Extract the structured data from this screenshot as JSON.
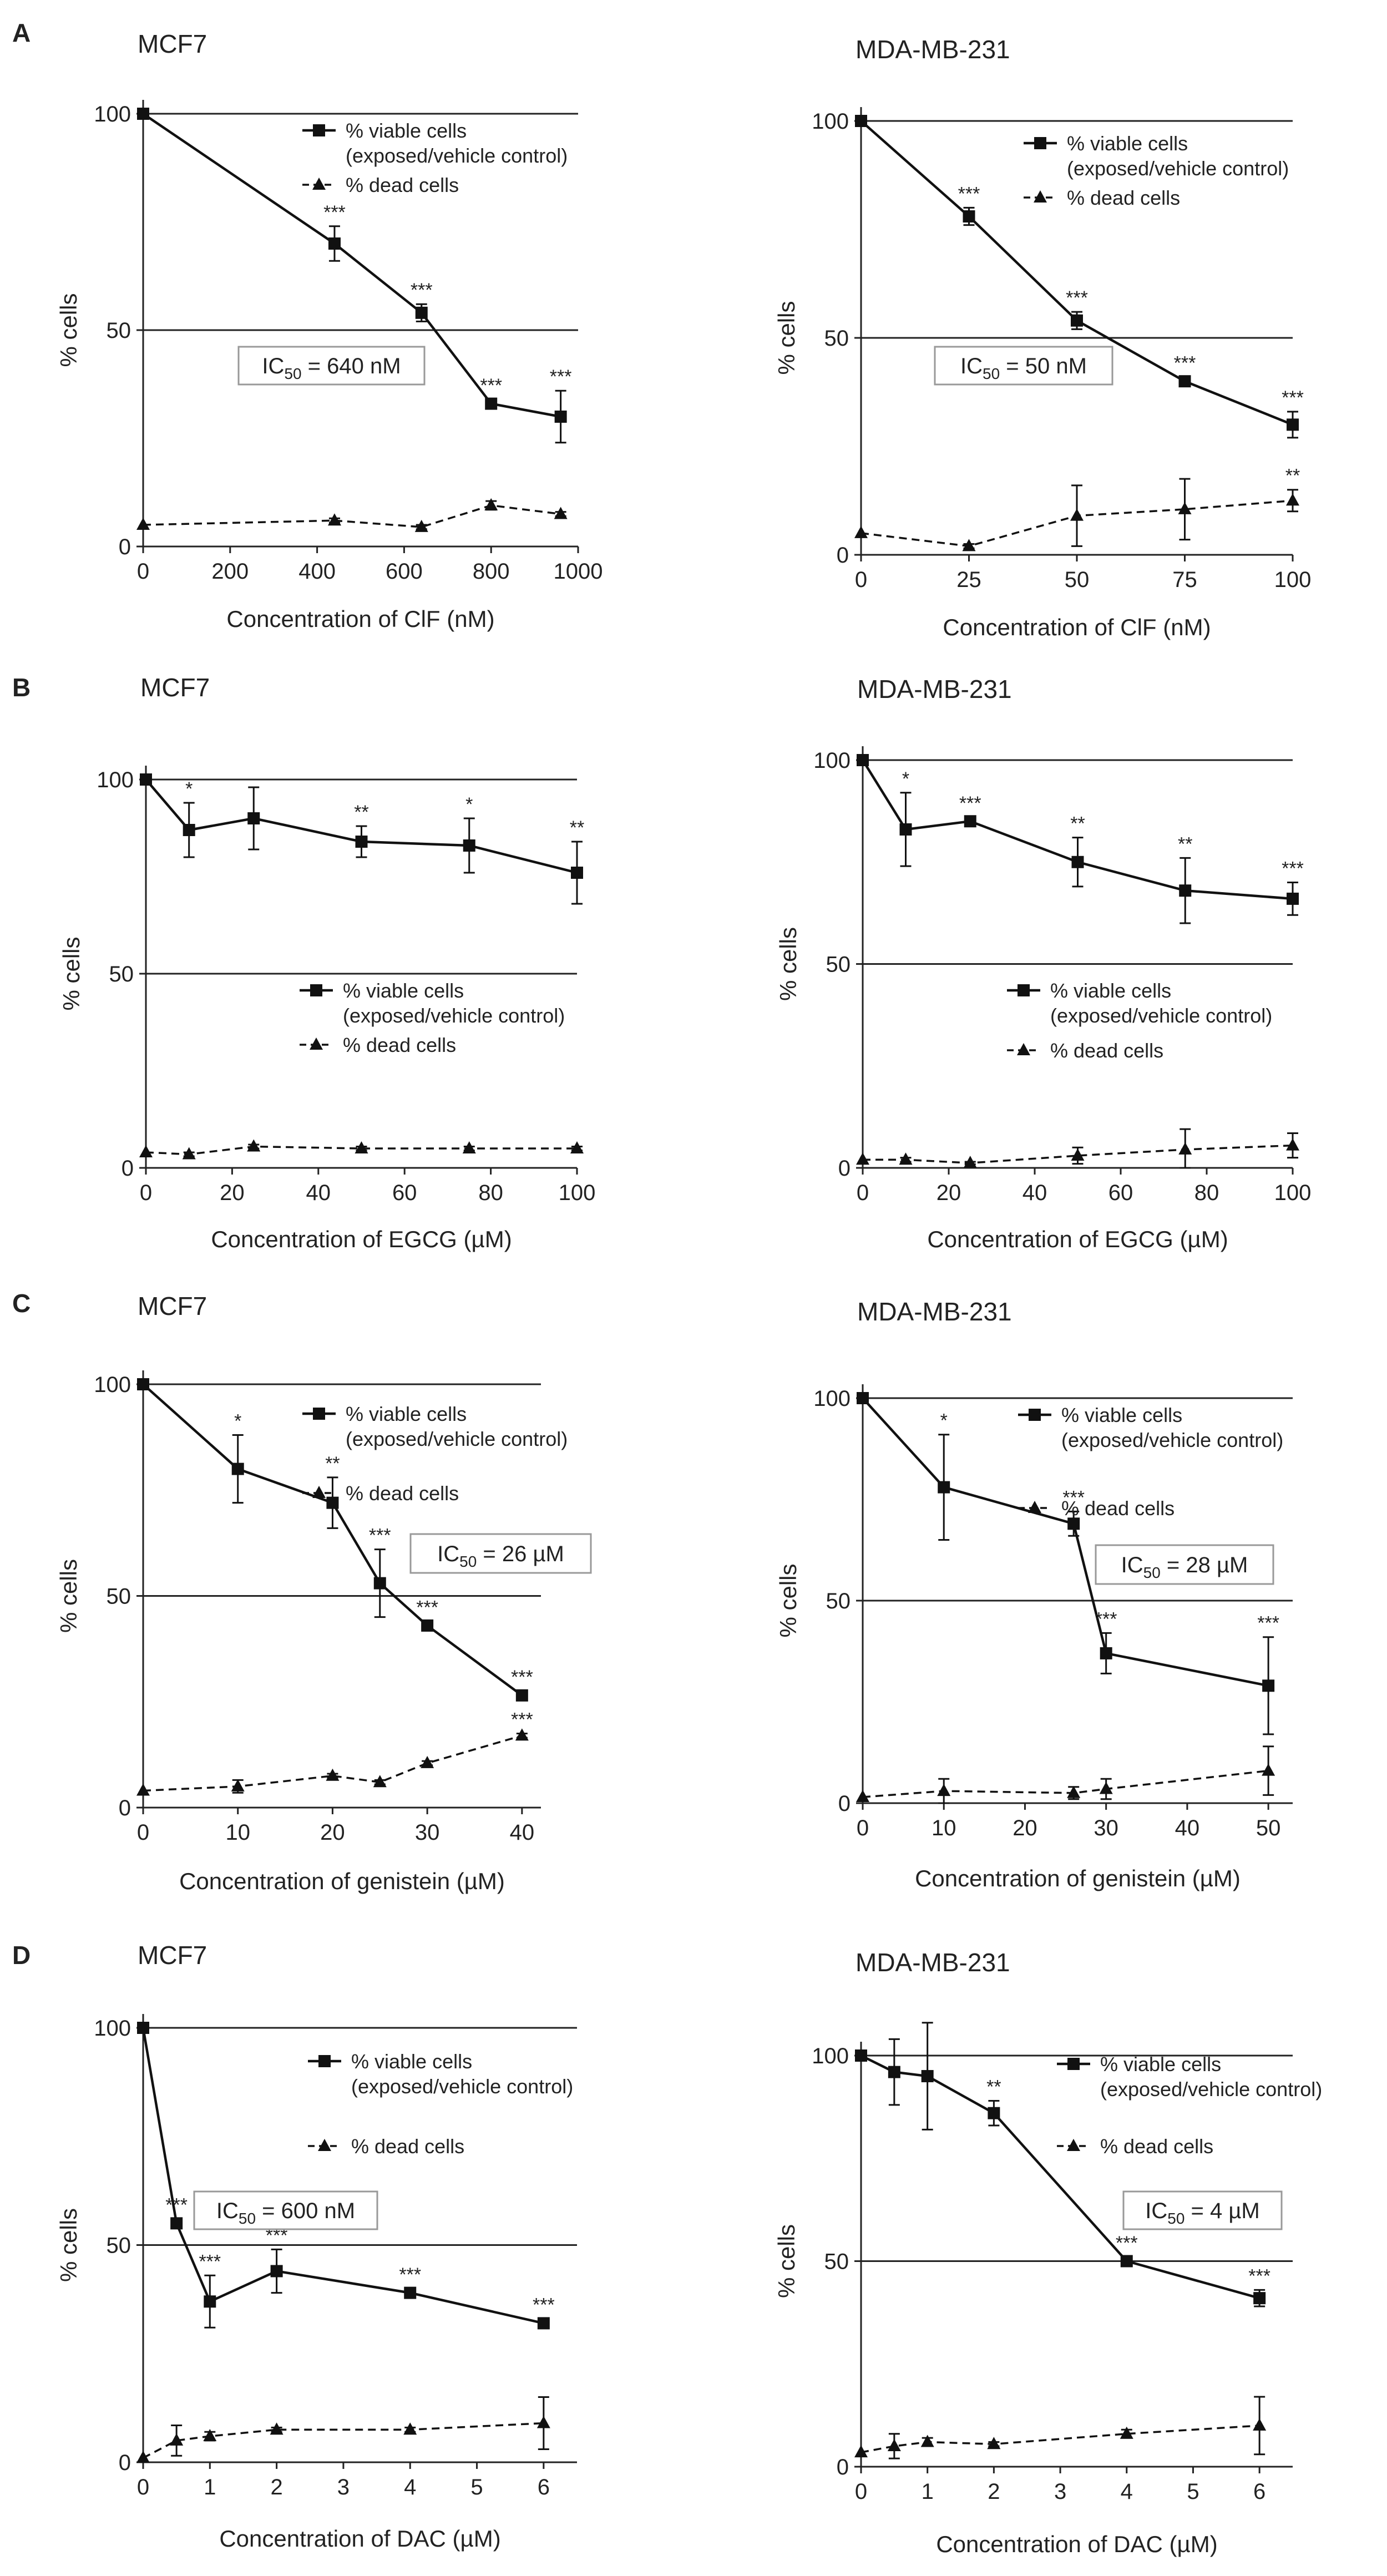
{
  "figure": {
    "panel_letters": [
      "A",
      "B",
      "C",
      "D"
    ]
  },
  "legend_labels": {
    "viable_line1": "% viable cells",
    "viable_line2": "(exposed/vehicle control)",
    "dead": "% dead cells"
  },
  "colors": {
    "ink": "#111111",
    "reference_line": "#222222",
    "box_border": "#999999"
  },
  "chart_data": [
    {
      "id": "A-MCF7",
      "type": "line",
      "panel": "A",
      "title": "MCF7",
      "xlabel": "Concentration of ClF (nM)",
      "ylabel": "% cells",
      "xlim": [
        0,
        1000
      ],
      "ylim": [
        0,
        100
      ],
      "xticks": [
        0,
        200,
        400,
        600,
        800,
        1000
      ],
      "yticks": [
        0,
        50,
        100
      ],
      "ic50": {
        "prefix": "IC",
        "sub": "50",
        "suffix": " = 640 nM"
      },
      "series": [
        {
          "name": "% viable cells (exposed/vehicle control)",
          "style": "solid",
          "marker": "square",
          "x": [
            0,
            440,
            640,
            800,
            960
          ],
          "y": [
            100,
            70,
            54,
            33,
            30
          ],
          "err": [
            0,
            4,
            2,
            1,
            6
          ],
          "sig": [
            "",
            "***",
            "***",
            "***",
            "***"
          ]
        },
        {
          "name": "% dead cells",
          "style": "dashed",
          "marker": "triangle",
          "x": [
            0,
            440,
            640,
            800,
            960
          ],
          "y": [
            5,
            6,
            4.5,
            9.5,
            7.5
          ],
          "err": [
            0,
            0.5,
            0.5,
            1,
            0.5
          ],
          "sig": [
            "",
            "",
            "",
            "",
            ""
          ]
        }
      ]
    },
    {
      "id": "A-MDA",
      "type": "line",
      "panel": "A",
      "title": "MDA-MB-231",
      "xlabel": "Concentration of ClF (nM)",
      "ylabel": "% cells",
      "xlim": [
        0,
        100
      ],
      "ylim": [
        0,
        100
      ],
      "xticks": [
        0,
        25,
        50,
        75,
        100
      ],
      "yticks": [
        0,
        50,
        100
      ],
      "ic50": {
        "prefix": "IC",
        "sub": "50",
        "suffix": " = 50 nM"
      },
      "series": [
        {
          "name": "% viable cells (exposed/vehicle control)",
          "style": "solid",
          "marker": "square",
          "x": [
            0,
            25,
            50,
            75,
            100
          ],
          "y": [
            100,
            78,
            54,
            40,
            30
          ],
          "err": [
            0,
            2,
            2,
            1,
            3
          ],
          "sig": [
            "",
            "***",
            "***",
            "***",
            "***"
          ]
        },
        {
          "name": "% dead cells",
          "style": "dashed",
          "marker": "triangle",
          "x": [
            0,
            25,
            50,
            75,
            100
          ],
          "y": [
            5,
            2,
            9,
            10.5,
            12.5
          ],
          "err": [
            0,
            0.5,
            7,
            7,
            2.5
          ],
          "sig": [
            "",
            "",
            "",
            "",
            "**"
          ]
        }
      ]
    },
    {
      "id": "B-MCF7",
      "type": "line",
      "panel": "B",
      "title": "MCF7",
      "xlabel": "Concentration of EGCG (µM)",
      "ylabel": "% cells",
      "xlim": [
        0,
        100
      ],
      "ylim": [
        0,
        100
      ],
      "xticks": [
        0,
        20,
        40,
        60,
        80,
        100
      ],
      "yticks": [
        0,
        50,
        100
      ],
      "ic50": null,
      "series": [
        {
          "name": "% viable cells (exposed/vehicle control)",
          "style": "solid",
          "marker": "square",
          "x": [
            0,
            10,
            25,
            50,
            75,
            100
          ],
          "y": [
            100,
            87,
            90,
            84,
            83,
            76
          ],
          "err": [
            0,
            7,
            8,
            4,
            7,
            8
          ],
          "sig": [
            "",
            "*",
            "",
            "**",
            "*",
            "**"
          ]
        },
        {
          "name": "% dead cells",
          "style": "dashed",
          "marker": "triangle",
          "x": [
            0,
            10,
            25,
            50,
            75,
            100
          ],
          "y": [
            4,
            3.5,
            5.5,
            5,
            5,
            5
          ],
          "err": [
            0,
            0.5,
            0.5,
            0.5,
            0.5,
            0.5
          ],
          "sig": [
            "",
            "",
            "",
            "",
            "",
            ""
          ]
        }
      ]
    },
    {
      "id": "B-MDA",
      "type": "line",
      "panel": "B",
      "title": "MDA-MB-231",
      "xlabel": "Concentration of EGCG (µM)",
      "ylabel": "% cells",
      "xlim": [
        0,
        100
      ],
      "ylim": [
        0,
        100
      ],
      "xticks": [
        0,
        20,
        40,
        60,
        80,
        100
      ],
      "yticks": [
        0,
        50,
        100
      ],
      "ic50": null,
      "series": [
        {
          "name": "% viable cells (exposed/vehicle control)",
          "style": "solid",
          "marker": "square",
          "x": [
            0,
            10,
            25,
            50,
            75,
            100
          ],
          "y": [
            100,
            83,
            85,
            75,
            68,
            66
          ],
          "err": [
            0,
            9,
            1,
            6,
            8,
            4
          ],
          "sig": [
            "",
            "*",
            "***",
            "**",
            "**",
            "***"
          ]
        },
        {
          "name": "% dead cells",
          "style": "dashed",
          "marker": "triangle",
          "x": [
            0,
            10,
            25,
            50,
            75,
            100
          ],
          "y": [
            2,
            2,
            1.2,
            3,
            4.5,
            5.5
          ],
          "err": [
            0,
            0.5,
            0.3,
            2,
            5,
            3
          ],
          "sig": [
            "",
            "",
            "",
            "",
            "",
            ""
          ]
        }
      ]
    },
    {
      "id": "C-MCF7",
      "type": "line",
      "panel": "C",
      "title": "MCF7",
      "xlabel": "Concentration of genistein (µM)",
      "ylabel": "% cells",
      "xlim": [
        0,
        42
      ],
      "ylim": [
        0,
        100
      ],
      "xticks": [
        0,
        10,
        20,
        30,
        40
      ],
      "yticks": [
        0,
        50,
        100
      ],
      "ic50": {
        "prefix": "IC",
        "sub": "50",
        "suffix": " = 26 µM"
      },
      "series": [
        {
          "name": "% viable cells (exposed/vehicle control)",
          "style": "solid",
          "marker": "square",
          "x": [
            0,
            10,
            20,
            25,
            30,
            40
          ],
          "y": [
            100,
            80,
            72,
            53,
            43,
            26.5
          ],
          "err": [
            0,
            8,
            6,
            8,
            1,
            1
          ],
          "sig": [
            "",
            "*",
            "**",
            "***",
            "***",
            "***"
          ]
        },
        {
          "name": "% dead cells",
          "style": "dashed",
          "marker": "triangle",
          "x": [
            0,
            10,
            20,
            25,
            30,
            40
          ],
          "y": [
            4,
            5,
            7.5,
            6,
            10.5,
            17
          ],
          "err": [
            0,
            1.5,
            0.5,
            0.5,
            0.5,
            0.5
          ],
          "sig": [
            "",
            "",
            "",
            "",
            "",
            "***"
          ]
        }
      ]
    },
    {
      "id": "C-MDA",
      "type": "line",
      "panel": "C",
      "title": "MDA-MB-231",
      "xlabel": "Concentration of genistein (µM)",
      "ylabel": "% cells",
      "xlim": [
        0,
        53
      ],
      "ylim": [
        0,
        100
      ],
      "xticks": [
        0,
        10,
        20,
        30,
        40,
        50
      ],
      "yticks": [
        0,
        50,
        100
      ],
      "ic50": {
        "prefix": "IC",
        "sub": "50",
        "suffix": " = 28 µM"
      },
      "series": [
        {
          "name": "% viable cells (exposed/vehicle control)",
          "style": "solid",
          "marker": "square",
          "x": [
            0,
            10,
            26,
            30,
            50
          ],
          "y": [
            100,
            78,
            69,
            37,
            29
          ],
          "err": [
            0,
            13,
            3,
            5,
            12
          ],
          "sig": [
            "",
            "*",
            "***",
            "***",
            "***"
          ]
        },
        {
          "name": "% dead cells",
          "style": "dashed",
          "marker": "triangle",
          "x": [
            0,
            10,
            26,
            30,
            50
          ],
          "y": [
            1.5,
            3,
            2.5,
            3.5,
            8
          ],
          "err": [
            0,
            3,
            1.5,
            2.5,
            6
          ],
          "sig": [
            "",
            "",
            "",
            "",
            ""
          ]
        }
      ]
    },
    {
      "id": "D-MCF7",
      "type": "line",
      "panel": "D",
      "title": "MCF7",
      "xlabel": "Concentration of DAC (µM)",
      "ylabel": "% cells",
      "xlim": [
        0,
        6.5
      ],
      "ylim": [
        0,
        100
      ],
      "xticks": [
        0,
        1,
        2,
        3,
        4,
        5,
        6
      ],
      "yticks": [
        0,
        50,
        100
      ],
      "ic50": {
        "prefix": "IC",
        "sub": "50",
        "suffix": " = 600 nM"
      },
      "series": [
        {
          "name": "% viable cells (exposed/vehicle control)",
          "style": "solid",
          "marker": "square",
          "x": [
            0,
            0.5,
            1,
            2,
            4,
            6
          ],
          "y": [
            100,
            55,
            37,
            44,
            39,
            32
          ],
          "err": [
            0,
            1,
            6,
            5,
            1,
            1
          ],
          "sig": [
            "",
            "***",
            "***",
            "***",
            "***",
            "***"
          ]
        },
        {
          "name": "% dead cells",
          "style": "dashed",
          "marker": "triangle",
          "x": [
            0,
            0.5,
            1,
            2,
            4,
            6
          ],
          "y": [
            1,
            5,
            6,
            7.5,
            7.5,
            9
          ],
          "err": [
            0,
            3.5,
            1,
            0.5,
            0.5,
            6
          ],
          "sig": [
            "",
            "",
            "",
            "",
            "",
            ""
          ]
        }
      ]
    },
    {
      "id": "D-MDA",
      "type": "line",
      "panel": "D",
      "title": "MDA-MB-231",
      "xlabel": "Concentration of DAC (µM)",
      "ylabel": "% cells",
      "xlim": [
        0,
        6.5
      ],
      "ylim": [
        0,
        100
      ],
      "xticks": [
        0,
        1,
        2,
        3,
        4,
        5,
        6
      ],
      "yticks": [
        0,
        50,
        100
      ],
      "ic50": {
        "prefix": "IC",
        "sub": "50",
        "suffix": " = 4 µM"
      },
      "series": [
        {
          "name": "% viable cells (exposed/vehicle control)",
          "style": "solid",
          "marker": "square",
          "x": [
            0,
            0.5,
            1,
            2,
            4,
            6
          ],
          "y": [
            100,
            96,
            95,
            86,
            50,
            41
          ],
          "err": [
            0,
            8,
            13,
            3,
            1,
            2
          ],
          "sig": [
            "",
            "",
            "",
            "**",
            "***",
            "***"
          ]
        },
        {
          "name": "% dead cells",
          "style": "dashed",
          "marker": "triangle",
          "x": [
            0,
            0.5,
            1,
            2,
            4,
            6
          ],
          "y": [
            3.5,
            5,
            6,
            5.5,
            8,
            10
          ],
          "err": [
            0,
            3,
            1,
            0.5,
            1,
            7
          ],
          "sig": [
            "",
            "",
            "",
            "",
            "",
            ""
          ]
        }
      ]
    }
  ]
}
